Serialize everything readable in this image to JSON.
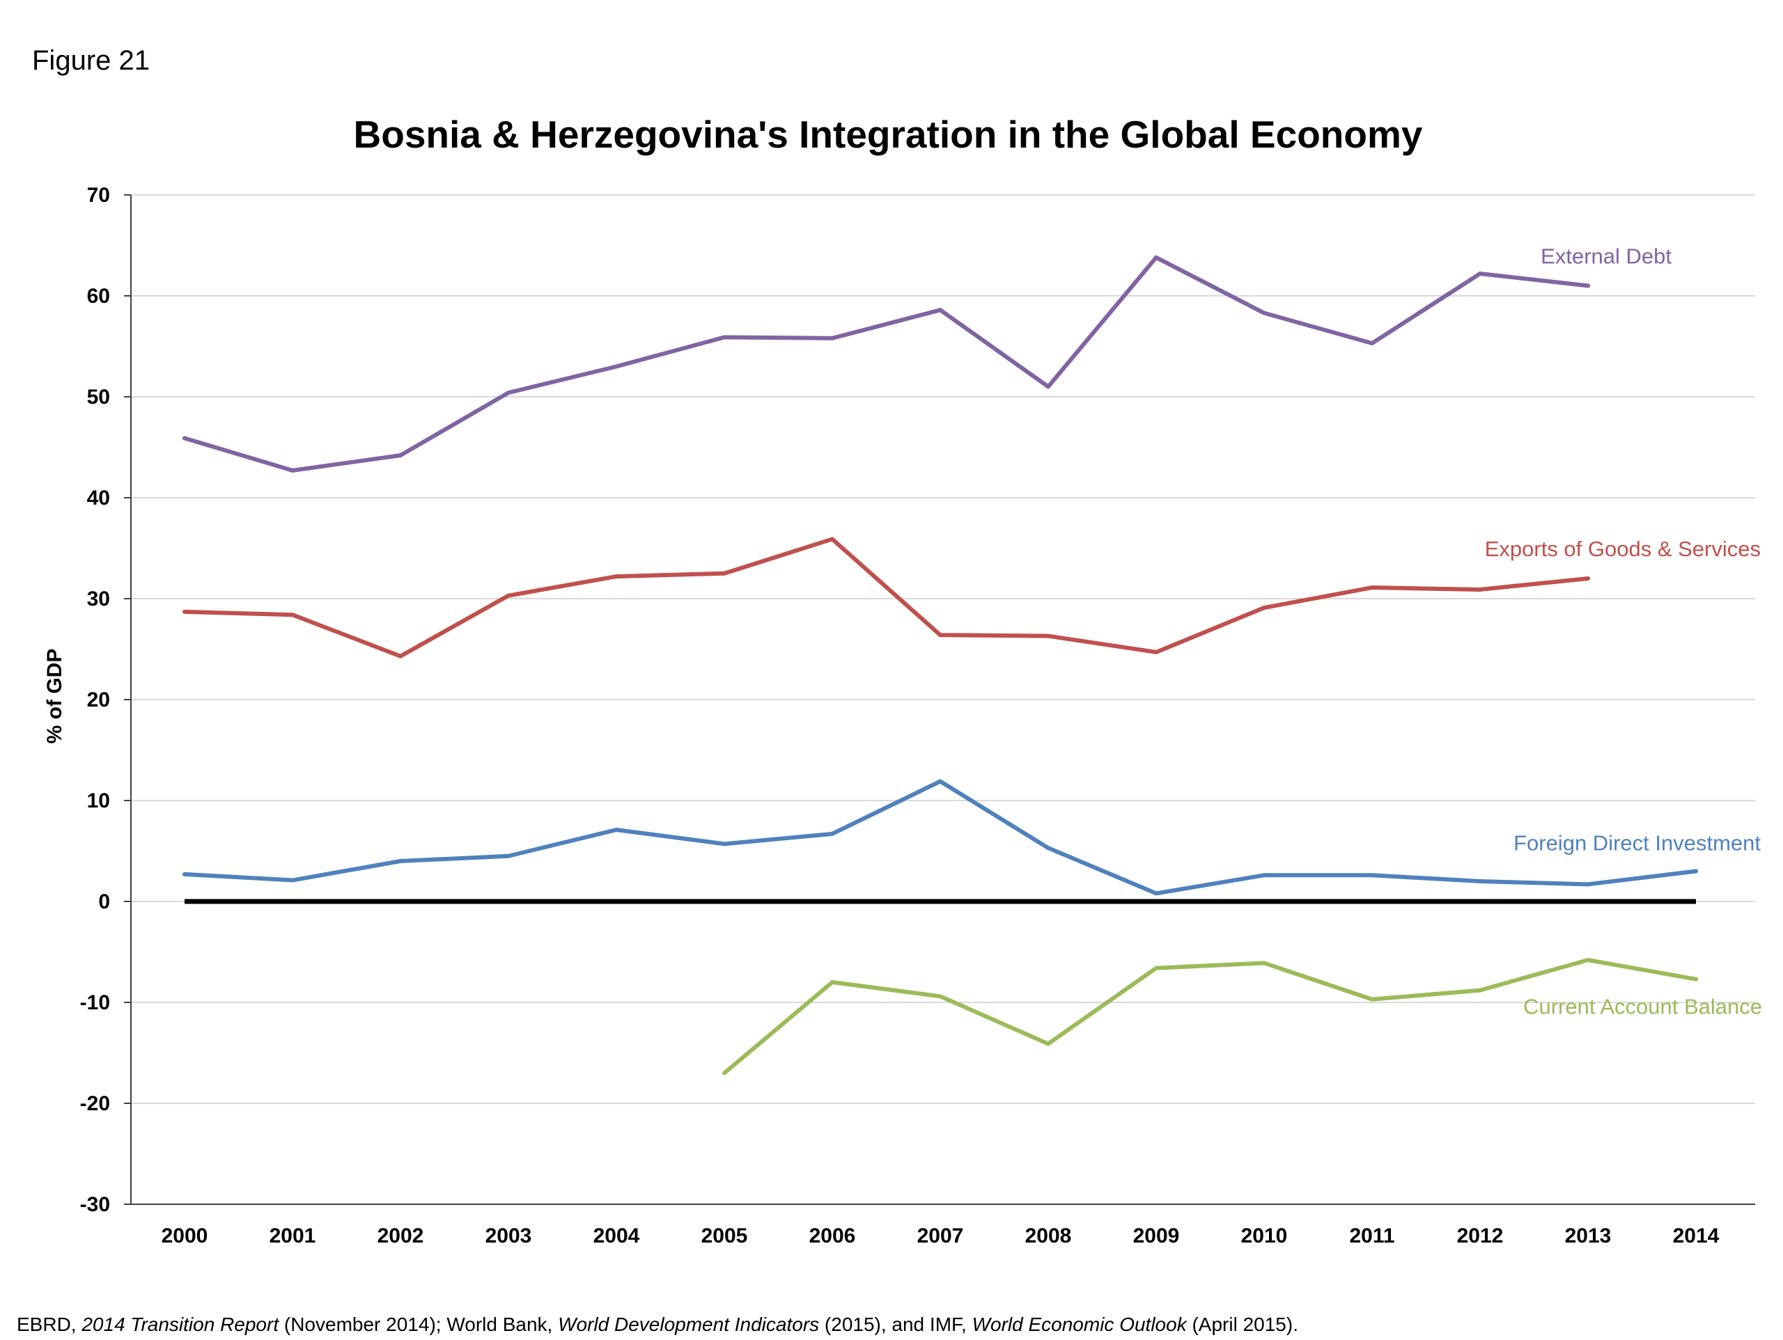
{
  "figure_label": "Figure 21",
  "source_note": {
    "parts": [
      {
        "text": "EBRD, ",
        "italic": false
      },
      {
        "text": "2014 Transition Report",
        "italic": true
      },
      {
        "text": " (November 2014); World Bank, ",
        "italic": false
      },
      {
        "text": "World Development Indicators",
        "italic": true
      },
      {
        "text": " (2015), and IMF, ",
        "italic": false
      },
      {
        "text": "World Economic Outlook",
        "italic": true
      },
      {
        "text": " (April 2015).",
        "italic": false
      }
    ]
  },
  "colors": {
    "external_debt": "#8064A2",
    "exports": "#C0504D",
    "fdi": "#4F81BD",
    "current_account": "#9BBB59",
    "zero_line": "#000000",
    "grid": "#D9D9D9",
    "axis": "#404040"
  },
  "chart_data": {
    "type": "line",
    "title": "Bosnia & Herzegovina's Integration in the Global Economy",
    "xlabel": "",
    "ylabel": "% of GDP",
    "ylim": [
      -30,
      70
    ],
    "yticks": [
      -30,
      -20,
      -10,
      0,
      10,
      20,
      30,
      40,
      50,
      60,
      70
    ],
    "grid": true,
    "legend": "inline labels at series ends",
    "categories": [
      "2000",
      "2001",
      "2002",
      "2003",
      "2004",
      "2005",
      "2006",
      "2007",
      "2008",
      "2009",
      "2010",
      "2011",
      "2012",
      "2013",
      "2014"
    ],
    "series": [
      {
        "key": "external_debt",
        "name": "External Debt",
        "values": [
          45.9,
          42.7,
          44.2,
          50.4,
          53.0,
          55.9,
          55.8,
          58.6,
          51.0,
          63.8,
          58.3,
          55.3,
          62.2,
          61.0,
          null
        ]
      },
      {
        "key": "exports",
        "name": "Exports of Goods & Services",
        "values": [
          28.7,
          28.4,
          24.3,
          30.3,
          32.2,
          32.5,
          35.9,
          26.4,
          26.3,
          24.7,
          29.1,
          31.1,
          30.9,
          32.0,
          null
        ]
      },
      {
        "key": "fdi",
        "name": "Foreign Direct Investment",
        "values": [
          2.7,
          2.1,
          4.0,
          4.5,
          7.1,
          5.7,
          6.7,
          11.9,
          5.3,
          0.8,
          2.6,
          2.6,
          2.0,
          1.7,
          3.0
        ]
      },
      {
        "key": "current_account",
        "name": "Current Account Balance",
        "values": [
          null,
          null,
          null,
          null,
          null,
          -17.0,
          -8.0,
          -9.4,
          -14.1,
          -6.6,
          -6.1,
          -9.7,
          -8.8,
          -5.8,
          -7.7
        ]
      }
    ]
  }
}
